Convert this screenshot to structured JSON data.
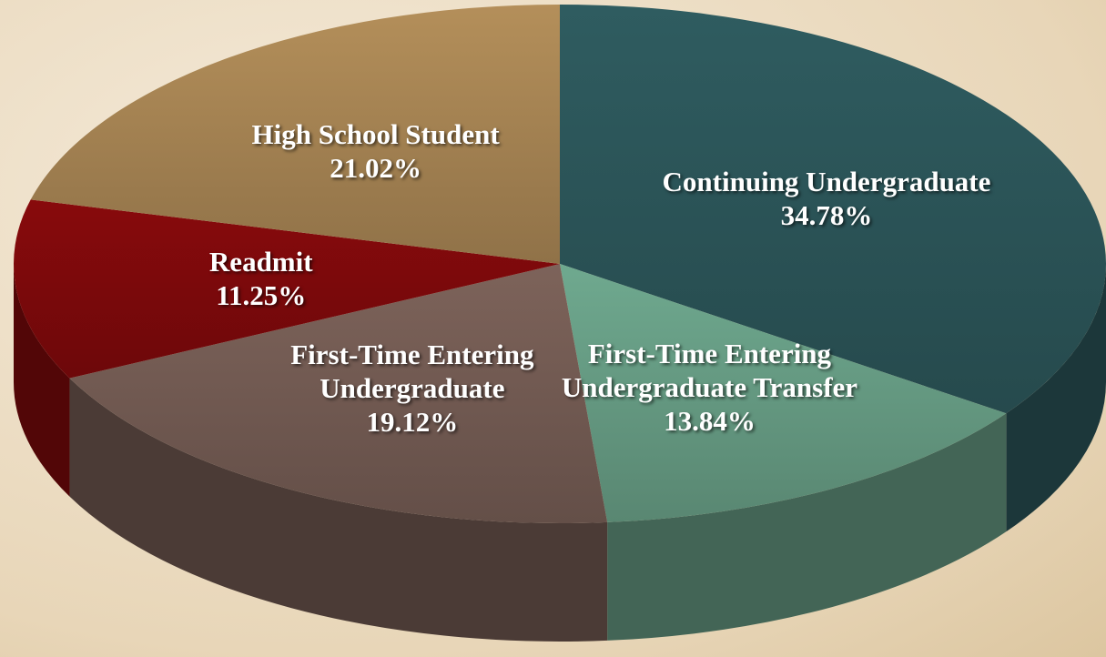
{
  "chart_data": {
    "type": "pie",
    "categories": [
      "Continuing Undergraduate",
      "First-Time Entering Undergraduate Transfer",
      "First-Time Entering Undergraduate",
      "Readmit",
      "High School Student"
    ],
    "values": [
      34.78,
      13.84,
      19.12,
      11.25,
      21.02
    ],
    "value_labels": [
      "34.78%",
      "13.84%",
      "19.12%",
      "11.25%",
      "21.02%"
    ],
    "colors": [
      "#2f5c60",
      "#6fa98f",
      "#7d635a",
      "#880a0c",
      "#b48f5a"
    ]
  }
}
